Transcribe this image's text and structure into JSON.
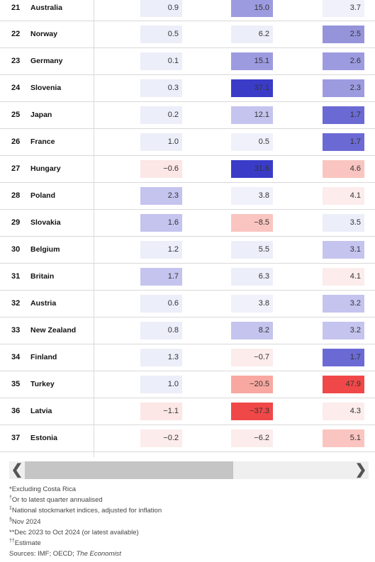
{
  "rows": [
    {
      "rank": "21",
      "country": "Australia",
      "v1": "0.9",
      "c1": "#eceef9",
      "v2": "15.0",
      "c2": "#9d9be0",
      "v3": "3.7",
      "c3": "#f1f1fb"
    },
    {
      "rank": "22",
      "country": "Norway",
      "v1": "0.5",
      "c1": "#eceef9",
      "v2": "6.2",
      "c2": "#eceef9",
      "v3": "2.5",
      "c3": "#9594db"
    },
    {
      "rank": "23",
      "country": "Germany",
      "v1": "0.1",
      "c1": "#eceef9",
      "v2": "15.1",
      "c2": "#9d9be0",
      "v3": "2.6",
      "c3": "#9d9be0"
    },
    {
      "rank": "24",
      "country": "Slovenia",
      "v1": "0.3",
      "c1": "#eceef9",
      "v2": "37.1",
      "c2": "#3a3cc8",
      "v3": "2.3",
      "c3": "#9d9be0"
    },
    {
      "rank": "25",
      "country": "Japan",
      "v1": "0.2",
      "c1": "#eceef9",
      "v2": "12.1",
      "c2": "#c5c4ef",
      "v3": "1.7",
      "c3": "#6b6ad4"
    },
    {
      "rank": "26",
      "country": "France",
      "v1": "1.0",
      "c1": "#eceef9",
      "v2": "0.5",
      "c2": "#f1f1fb",
      "v3": "1.7",
      "c3": "#6b6ad4"
    },
    {
      "rank": "27",
      "country": "Hungary",
      "v1": "−0.6",
      "c1": "#fce6e6",
      "v2": "31.6",
      "c2": "#3a3cc8",
      "v3": "4.6",
      "c3": "#fac5c0"
    },
    {
      "rank": "28",
      "country": "Poland",
      "v1": "2.3",
      "c1": "#c5c4ef",
      "v2": "3.8",
      "c2": "#f1f1fb",
      "v3": "4.1",
      "c3": "#fcecec"
    },
    {
      "rank": "29",
      "country": "Slovakia",
      "v1": "1.6",
      "c1": "#c5c4ef",
      "v2": "−8.5",
      "c2": "#fac5c0",
      "v3": "3.5",
      "c3": "#eceef9"
    },
    {
      "rank": "30",
      "country": "Belgium",
      "v1": "1.2",
      "c1": "#eceef9",
      "v2": "5.5",
      "c2": "#eceef9",
      "v3": "3.1",
      "c3": "#c5c4ef"
    },
    {
      "rank": "31",
      "country": "Britain",
      "v1": "1.7",
      "c1": "#c5c4ef",
      "v2": "6.3",
      "c2": "#eceef9",
      "v3": "4.1",
      "c3": "#fcecec"
    },
    {
      "rank": "32",
      "country": "Austria",
      "v1": "0.6",
      "c1": "#eceef9",
      "v2": "3.8",
      "c2": "#f1f1fb",
      "v3": "3.2",
      "c3": "#c5c4ef"
    },
    {
      "rank": "33",
      "country": "New Zealand",
      "v1": "0.8",
      "c1": "#eceef9",
      "v2": "8.2",
      "c2": "#c5c4ef",
      "v3": "3.2",
      "c3": "#c5c4ef"
    },
    {
      "rank": "34",
      "country": "Finland",
      "v1": "1.3",
      "c1": "#eceef9",
      "v2": "−0.7",
      "c2": "#fcecec",
      "v3": "1.7",
      "c3": "#6b6ad4"
    },
    {
      "rank": "35",
      "country": "Turkey",
      "v1": "1.0",
      "c1": "#eceef9",
      "v2": "−20.5",
      "c2": "#f8a8a0",
      "v3": "47.9",
      "c3": "#f04848"
    },
    {
      "rank": "36",
      "country": "Latvia",
      "v1": "−1.1",
      "c1": "#fce6e6",
      "v2": "−37.3",
      "c2": "#f04848",
      "v3": "4.3",
      "c3": "#fcecec"
    },
    {
      "rank": "37",
      "country": "Estonia",
      "v1": "−0.2",
      "c1": "#fcecec",
      "v2": "−6.2",
      "c2": "#fcecec",
      "v3": "5.1",
      "c3": "#fac5c0"
    }
  ],
  "scroll": {
    "left": "❮",
    "right": "❯",
    "left_icon": "chevron-left-icon",
    "right_icon": "chevron-right-icon"
  },
  "notes": {
    "n1": "*Excluding Costa Rica",
    "n2_mark": "†",
    "n2": "Or to latest quarter annualised",
    "n3_mark": "‡",
    "n3": "National stockmarket indices, adjusted for inflation",
    "n4_mark": "§",
    "n4": "Nov 2024",
    "n5": "**Dec 2023 to Oct 2024 (or latest available)",
    "n6_mark": "††",
    "n6": "Estimate",
    "n7": "Sources: IMF; OECD; ",
    "n7_italic": "The Economist"
  },
  "colors": {
    "divider": "#d9d9d9",
    "text": "#333333"
  }
}
